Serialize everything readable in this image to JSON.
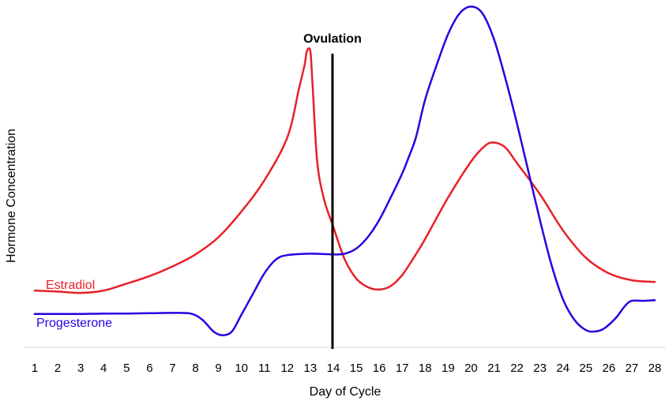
{
  "chart_data": {
    "type": "line",
    "title": "",
    "xlabel": "Day of Cycle",
    "ylabel": "Hormone Concentration",
    "x": [
      1,
      2,
      3,
      4,
      5,
      6,
      7,
      8,
      9,
      10,
      11,
      12,
      13,
      14,
      15,
      16,
      17,
      18,
      19,
      20,
      21,
      22,
      23,
      24,
      25,
      26,
      27,
      28
    ],
    "xlim": [
      1,
      28
    ],
    "ylim": [
      0,
      100
    ],
    "grid": false,
    "y_ticks_shown": false,
    "marker": {
      "x": 14,
      "label": "Ovulation",
      "color": "#000000"
    },
    "series": [
      {
        "name": "Estradiol",
        "color": "#e8202a",
        "points": [
          [
            1,
            16.5
          ],
          [
            2,
            16.2
          ],
          [
            3,
            15.8
          ],
          [
            4,
            16.5
          ],
          [
            5,
            18.5
          ],
          [
            6,
            20.7
          ],
          [
            7,
            23.5
          ],
          [
            8,
            27
          ],
          [
            9,
            32
          ],
          [
            10,
            39.5
          ],
          [
            11,
            48.5
          ],
          [
            12,
            61
          ],
          [
            12.5,
            75
          ],
          [
            12.75,
            82
          ],
          [
            12.85,
            86
          ],
          [
            13,
            86
          ],
          [
            13.1,
            76
          ],
          [
            13.3,
            54
          ],
          [
            13.6,
            43
          ],
          [
            14,
            35
          ],
          [
            14.5,
            25.5
          ],
          [
            15,
            20
          ],
          [
            15.5,
            17.5
          ],
          [
            16,
            16.8
          ],
          [
            16.5,
            17.8
          ],
          [
            17,
            21
          ],
          [
            17.5,
            26
          ],
          [
            18,
            31.5
          ],
          [
            19,
            43.5
          ],
          [
            20,
            54
          ],
          [
            20.6,
            58.5
          ],
          [
            21,
            59.5
          ],
          [
            21.5,
            58
          ],
          [
            22,
            53.5
          ],
          [
            23,
            44.5
          ],
          [
            24,
            34
          ],
          [
            25,
            26
          ],
          [
            26,
            21.5
          ],
          [
            27,
            19.5
          ],
          [
            28,
            19
          ]
        ]
      },
      {
        "name": "Progesterone",
        "color": "#2a00e0",
        "points": [
          [
            1,
            9.7
          ],
          [
            2,
            9.7
          ],
          [
            3,
            9.7
          ],
          [
            4,
            9.8
          ],
          [
            5,
            9.8
          ],
          [
            6,
            9.9
          ],
          [
            7,
            10
          ],
          [
            7.8,
            9.8
          ],
          [
            8.3,
            8
          ],
          [
            8.8,
            4.5
          ],
          [
            9.2,
            3.5
          ],
          [
            9.6,
            4.7
          ],
          [
            10,
            9.5
          ],
          [
            10.5,
            15.5
          ],
          [
            11,
            21.5
          ],
          [
            11.5,
            25.5
          ],
          [
            12,
            26.8
          ],
          [
            13,
            27.2
          ],
          [
            14,
            27
          ],
          [
            14.5,
            27.2
          ],
          [
            15,
            28.7
          ],
          [
            15.5,
            32
          ],
          [
            16,
            37
          ],
          [
            16.5,
            43.5
          ],
          [
            17,
            50.5
          ],
          [
            17.3,
            55.5
          ],
          [
            17.6,
            61
          ],
          [
            18,
            72
          ],
          [
            18.5,
            82
          ],
          [
            19,
            91
          ],
          [
            19.5,
            97
          ],
          [
            20,
            99
          ],
          [
            20.5,
            97
          ],
          [
            21,
            89.5
          ],
          [
            21.5,
            78
          ],
          [
            22,
            65
          ],
          [
            22.5,
            51
          ],
          [
            23,
            37
          ],
          [
            23.5,
            24
          ],
          [
            24,
            14
          ],
          [
            24.5,
            8
          ],
          [
            25,
            5
          ],
          [
            25.4,
            4.6
          ],
          [
            25.8,
            5.5
          ],
          [
            26.3,
            8.5
          ],
          [
            26.7,
            12
          ],
          [
            27,
            13.5
          ],
          [
            27.5,
            13.5
          ],
          [
            28,
            13.7
          ]
        ]
      }
    ]
  }
}
